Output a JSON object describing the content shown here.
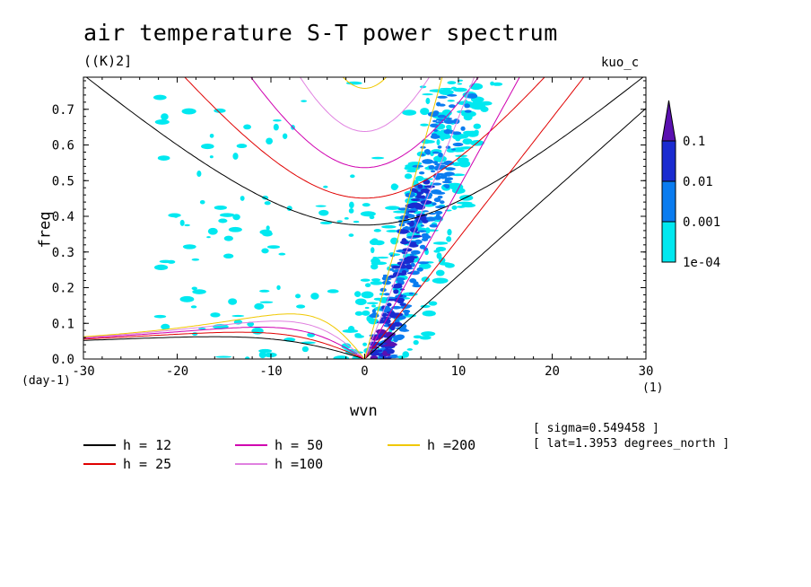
{
  "chart_data": {
    "type": "heatmap",
    "title": "air temperature S-T power spectrum",
    "units_label": "((K)2]",
    "model_label": "kuo_c",
    "xlabel": "wvn",
    "ylabel": "freq",
    "x_unit": "(1)",
    "y_unit": "(day-1)",
    "xlim": [
      -30,
      30
    ],
    "ylim": [
      0,
      0.79
    ],
    "x_ticks": [
      "-30",
      "-20",
      "-10",
      "0",
      "10",
      "20",
      "30"
    ],
    "y_ticks": [
      "0.0",
      "0.1",
      "0.2",
      "0.3",
      "0.4",
      "0.5",
      "0.6",
      "0.7"
    ],
    "colorbar": {
      "levels": [
        "1e-04",
        "0.001",
        "0.01",
        "0.1"
      ],
      "colors": [
        "#00e8f0",
        "#0a7cf0",
        "#1a2bd0",
        "#5a10b0"
      ]
    },
    "notes": [
      "[ sigma=0.549458 ]",
      "[ lat=1.3953 degrees_north ]"
    ],
    "series": [
      {
        "name": "h = 12",
        "h": 12,
        "color": "#000000"
      },
      {
        "name": "h = 25",
        "h": 25,
        "color": "#e00000"
      },
      {
        "name": "h = 50",
        "h": 50,
        "color": "#d000b0"
      },
      {
        "name": "h =100",
        "h": 100,
        "color": "#e080e0"
      },
      {
        "name": "h =200",
        "h": 200,
        "color": "#f0c800"
      }
    ],
    "spectral_power_regions": [
      {
        "level": "1e-04",
        "wvn_range": [
          -22,
          17
        ],
        "freq_range": [
          0.0,
          0.79
        ]
      },
      {
        "level": "0.001",
        "wvn_range": [
          1,
          13
        ],
        "freq_range": [
          0.0,
          0.75
        ]
      },
      {
        "level": "0.01",
        "wvn_range": [
          1,
          9
        ],
        "freq_range": [
          0.0,
          0.5
        ]
      },
      {
        "level": "0.1",
        "wvn_range": [
          1,
          3
        ],
        "freq_range": [
          0.0,
          0.08
        ]
      }
    ]
  }
}
